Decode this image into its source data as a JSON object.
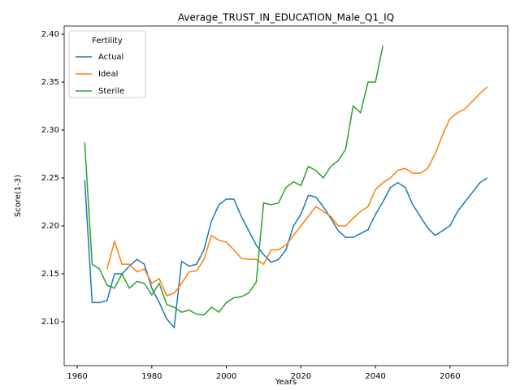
{
  "chart_data": {
    "type": "line",
    "title": "Average_TRUST_IN_EDUCATION_Male_Q1_IQ",
    "x_label": "Years",
    "y_label": "Score(1-3)",
    "legend_title": "Fertility",
    "legend_position": "upper left",
    "x": [
      1962,
      1964,
      1966,
      1968,
      1970,
      1972,
      1974,
      1976,
      1978,
      1980,
      1982,
      1984,
      1986,
      1988,
      1990,
      1992,
      1994,
      1996,
      1998,
      2000,
      2002,
      2004,
      2006,
      2008,
      2010,
      2012,
      2014,
      2016,
      2018,
      2020,
      2022,
      2024,
      2026,
      2028,
      2030,
      2032,
      2034,
      2036,
      2038,
      2040,
      2042,
      2044,
      2046,
      2048,
      2050,
      2052,
      2054,
      2056,
      2058,
      2060,
      2062,
      2064,
      2066,
      2068,
      2070
    ],
    "series": [
      {
        "name": "Actual",
        "color": "#1f77b4",
        "values": [
          2.248,
          2.12,
          2.12,
          2.122,
          2.15,
          2.15,
          2.158,
          2.165,
          2.16,
          2.135,
          2.12,
          2.103,
          2.094,
          2.163,
          2.158,
          2.16,
          2.175,
          2.205,
          2.222,
          2.228,
          2.228,
          2.21,
          2.195,
          2.18,
          2.17,
          2.162,
          2.165,
          2.175,
          2.2,
          2.212,
          2.232,
          2.23,
          2.22,
          2.208,
          2.195,
          2.188,
          2.188,
          2.192,
          2.196,
          2.212,
          2.225,
          2.24,
          2.245,
          2.24,
          2.222,
          2.21,
          2.198,
          2.19,
          2.195,
          2.2,
          2.215,
          2.225,
          2.235,
          2.245,
          2.25
        ]
      },
      {
        "name": "Ideal",
        "color": "#ff7f0e",
        "values": [
          null,
          null,
          null,
          2.155,
          2.184,
          2.16,
          2.16,
          2.152,
          2.155,
          2.14,
          2.145,
          2.127,
          2.13,
          2.14,
          2.152,
          2.153,
          2.165,
          2.19,
          2.185,
          2.183,
          2.175,
          2.166,
          2.165,
          2.165,
          2.16,
          2.175,
          2.175,
          2.18,
          2.19,
          2.2,
          2.21,
          2.22,
          2.215,
          2.21,
          2.2,
          2.2,
          2.208,
          2.215,
          2.22,
          2.238,
          2.245,
          2.25,
          2.258,
          2.26,
          2.255,
          2.255,
          2.26,
          2.275,
          2.295,
          2.312,
          2.318,
          2.322,
          2.33,
          2.338,
          2.345
        ]
      },
      {
        "name": "Sterile",
        "color": "#2ca02c",
        "values": [
          2.287,
          2.16,
          2.155,
          2.138,
          2.135,
          2.15,
          2.135,
          2.142,
          2.14,
          2.128,
          2.14,
          2.118,
          2.115,
          2.11,
          2.112,
          2.108,
          2.107,
          2.115,
          2.11,
          2.12,
          2.125,
          2.126,
          2.13,
          2.141,
          2.224,
          2.222,
          2.224,
          2.24,
          2.246,
          2.242,
          2.262,
          2.258,
          2.25,
          2.262,
          2.268,
          2.28,
          2.325,
          2.318,
          2.35,
          2.35,
          2.388,
          null,
          null,
          null,
          null,
          null,
          null,
          null,
          null,
          null,
          null,
          null,
          null,
          null,
          null
        ]
      }
    ],
    "xlim": [
      1956.5,
      2075.5
    ],
    "xticks": [
      1960,
      1980,
      2000,
      2020,
      2040,
      2060
    ],
    "ylim": [
      2.0542,
      2.4085
    ],
    "yticks": [
      {
        "value": 2.1,
        "label": "2.10"
      },
      {
        "value": 2.15,
        "label": "2.15"
      },
      {
        "value": 2.2,
        "label": "2.20"
      },
      {
        "value": 2.25,
        "label": "2.25"
      },
      {
        "value": 2.3,
        "label": "2.30"
      },
      {
        "value": 2.35,
        "label": "2.35"
      },
      {
        "value": 2.4,
        "label": "2.40"
      }
    ],
    "grid": false
  }
}
